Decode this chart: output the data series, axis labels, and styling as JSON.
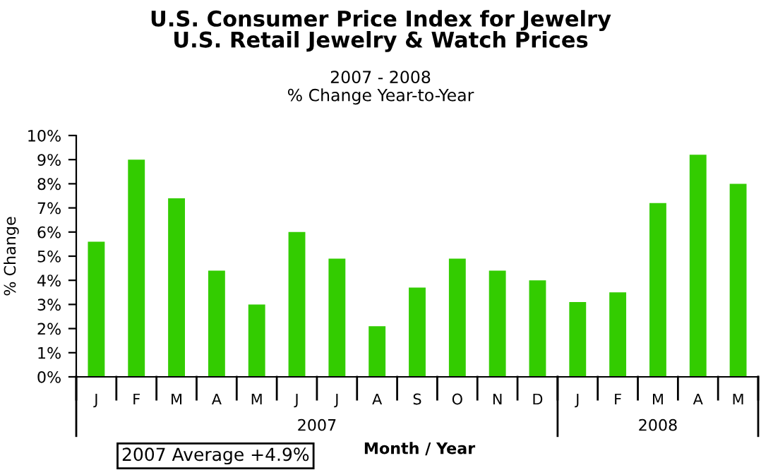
{
  "chart_data": {
    "type": "bar",
    "title": "U.S. Consumer Price Index for Jewelry\nU.S. Retail Jewelry & Watch Prices",
    "subtitle": "2007 - 2008\n% Change Year-to-Year",
    "xlabel": "Month / Year",
    "ylabel": "% Change",
    "categories": [
      "J",
      "F",
      "M",
      "A",
      "M",
      "J",
      "J",
      "A",
      "S",
      "O",
      "N",
      "D",
      "J",
      "F",
      "M",
      "A",
      "M"
    ],
    "values": [
      5.6,
      9.0,
      7.4,
      4.4,
      3.0,
      6.0,
      4.9,
      2.1,
      3.7,
      4.9,
      4.4,
      4.0,
      3.1,
      3.5,
      7.2,
      9.2,
      8.0
    ],
    "color": "#33cc00",
    "ylim": [
      0,
      10
    ],
    "yticks": [
      {
        "value": 0,
        "label": "0%"
      },
      {
        "value": 1,
        "label": "1%"
      },
      {
        "value": 2,
        "label": "2%"
      },
      {
        "value": 3,
        "label": "3%"
      },
      {
        "value": 4,
        "label": "4%"
      },
      {
        "value": 5,
        "label": "5%"
      },
      {
        "value": 6,
        "label": "6%"
      },
      {
        "value": 7,
        "label": "7%"
      },
      {
        "value": 8,
        "label": "8%"
      },
      {
        "value": 9,
        "label": "9%"
      },
      {
        "value": 10,
        "label": "10%"
      }
    ],
    "annotations": [
      "2007",
      "2008",
      "2007 Average +4.9%"
    ],
    "grid": false,
    "legend": false
  }
}
